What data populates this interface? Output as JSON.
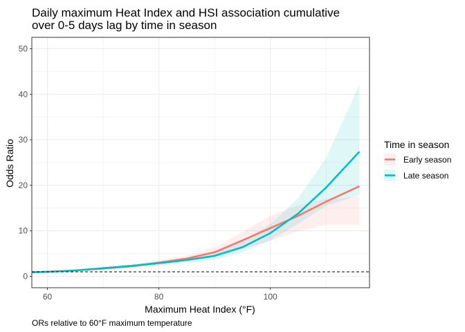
{
  "chart_data": {
    "type": "line",
    "title_lines": [
      "Daily maximum Heat Index and HSI association cumulative",
      "over 0-5 days lag by time in season"
    ],
    "xlabel": "Maximum Heat Index (°F)",
    "ylabel": "Odds Ratio",
    "caption": "ORs relative to 60°F maximum temperature",
    "xlim": [
      57.2,
      117.8
    ],
    "ylim": [
      -2.5,
      52.5
    ],
    "x_ticks": [
      60,
      80,
      100
    ],
    "y_ticks": [
      0,
      10,
      20,
      30,
      40,
      50
    ],
    "reference_line": {
      "y": 1,
      "style": "dashed"
    },
    "grid": true,
    "legend": {
      "title": "Time in season",
      "placement": "right"
    },
    "series": [
      {
        "name": "Early season",
        "color": "#F8766D",
        "x": [
          57,
          60,
          65,
          70,
          75,
          80,
          85,
          90,
          95,
          100,
          105,
          110,
          116
        ],
        "y": [
          0.9,
          1.0,
          1.3,
          1.7,
          2.2,
          3.0,
          3.9,
          5.3,
          7.9,
          10.6,
          13.3,
          16.4,
          19.8
        ],
        "lower": [
          0.85,
          0.95,
          1.15,
          1.5,
          1.9,
          2.5,
          3.3,
          4.3,
          5.9,
          7.8,
          9.9,
          11.3,
          11.3
        ],
        "upper": [
          0.95,
          1.05,
          1.5,
          2.0,
          2.5,
          3.6,
          4.6,
          6.3,
          9.7,
          13.3,
          15.6,
          17.0,
          17.5
        ]
      },
      {
        "name": "Late season",
        "color": "#00BFC4",
        "x": [
          57,
          60,
          65,
          70,
          75,
          80,
          85,
          90,
          95,
          100,
          105,
          110,
          116
        ],
        "y": [
          0.9,
          1.0,
          1.3,
          1.8,
          2.3,
          2.9,
          3.6,
          4.5,
          6.4,
          9.5,
          13.8,
          19.5,
          27.4
        ],
        "lower": [
          0.85,
          0.95,
          1.15,
          1.6,
          2.0,
          2.5,
          3.0,
          3.6,
          5.3,
          7.9,
          11.5,
          15.5,
          17.8
        ],
        "upper": [
          0.95,
          1.05,
          1.45,
          2.0,
          2.6,
          3.3,
          4.2,
          5.5,
          7.8,
          11.5,
          17.2,
          26.0,
          42.2
        ]
      }
    ]
  }
}
